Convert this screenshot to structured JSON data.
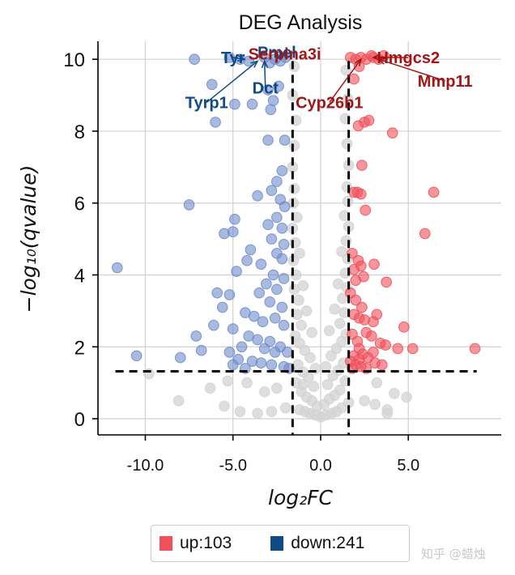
{
  "chart_data": {
    "type": "scatter",
    "title": "DEG Analysis",
    "xlabel": "log₂FC",
    "ylabel": "−log₁₀(qvalue)",
    "xlim": [
      -12.7,
      10.3
    ],
    "ylim": [
      -0.45,
      10.5
    ],
    "xticks": [
      -10,
      -5,
      0,
      5
    ],
    "xtick_labels": [
      "-10.0",
      "-5.0",
      "0.0",
      "5.0"
    ],
    "yticks": [
      0,
      2,
      4,
      6,
      8,
      10
    ],
    "ytick_labels": [
      "0",
      "2",
      "4",
      "6",
      "8",
      "10"
    ],
    "grid": true,
    "fc_threshold": 1.6,
    "q_threshold_line": 1.32,
    "thresholds": {
      "log2fc": [
        -1.6,
        1.6
      ],
      "neg_log10_q": 1.32
    },
    "colors": {
      "up": "#f0505a",
      "down": "#6f8ccb",
      "ns": "#d3d3d3",
      "up_label": "#a31616",
      "down_label": "#0e4a86",
      "legend_up": "#f0505a",
      "legend_down": "#0e4a86"
    },
    "series": [
      {
        "name": "up",
        "points": [
          [
            1.7,
            10.05
          ],
          [
            2.0,
            10.0
          ],
          [
            2.3,
            10.05
          ],
          [
            2.6,
            10.0
          ],
          [
            3.0,
            10.05
          ],
          [
            3.3,
            10.0
          ],
          [
            3.6,
            10.1
          ],
          [
            2.9,
            10.1
          ],
          [
            2.2,
            9.8
          ],
          [
            1.9,
            9.45
          ],
          [
            2.5,
            8.25
          ],
          [
            2.75,
            8.3
          ],
          [
            2.15,
            8.15
          ],
          [
            4.1,
            7.95
          ],
          [
            2.35,
            7.05
          ],
          [
            1.9,
            6.3
          ],
          [
            2.1,
            6.3
          ],
          [
            2.3,
            6.25
          ],
          [
            2.55,
            5.8
          ],
          [
            6.45,
            6.3
          ],
          [
            5.95,
            5.15
          ],
          [
            1.8,
            4.6
          ],
          [
            2.15,
            4.4
          ],
          [
            2.3,
            4.25
          ],
          [
            3.05,
            4.3
          ],
          [
            1.9,
            4.15
          ],
          [
            2.45,
            3.95
          ],
          [
            2.0,
            3.85
          ],
          [
            3.75,
            3.8
          ],
          [
            1.7,
            3.5
          ],
          [
            2.0,
            3.3
          ],
          [
            2.35,
            3.1
          ],
          [
            1.9,
            2.9
          ],
          [
            2.2,
            2.8
          ],
          [
            2.5,
            2.75
          ],
          [
            3.2,
            2.9
          ],
          [
            3.0,
            2.7
          ],
          [
            4.75,
            2.55
          ],
          [
            2.6,
            2.4
          ],
          [
            1.8,
            2.35
          ],
          [
            2.1,
            2.15
          ],
          [
            2.9,
            2.3
          ],
          [
            3.4,
            2.1
          ],
          [
            2.2,
            1.95
          ],
          [
            3.7,
            2.05
          ],
          [
            4.4,
            1.95
          ],
          [
            5.25,
            1.95
          ],
          [
            8.8,
            1.95
          ],
          [
            2.4,
            1.8
          ],
          [
            2.7,
            1.7
          ],
          [
            3.0,
            1.85
          ],
          [
            1.9,
            1.75
          ],
          [
            1.7,
            1.6
          ],
          [
            2.0,
            1.5
          ],
          [
            2.3,
            1.45
          ],
          [
            2.6,
            1.4
          ],
          [
            3.1,
            1.55
          ],
          [
            3.5,
            1.5
          ],
          [
            1.8,
            1.4
          ],
          [
            2.2,
            1.65
          ]
        ]
      },
      {
        "name": "down",
        "points": [
          [
            -7.2,
            10.0
          ],
          [
            -6.2,
            9.3
          ],
          [
            -5.2,
            10.05
          ],
          [
            -4.6,
            10.0
          ],
          [
            -4.1,
            9.95
          ],
          [
            -3.2,
            10.05
          ],
          [
            -2.9,
            9.9
          ],
          [
            -2.6,
            10.0
          ],
          [
            -2.3,
            9.95
          ],
          [
            -2.0,
            10.05
          ],
          [
            -3.9,
            8.75
          ],
          [
            -3.0,
            9.15
          ],
          [
            -2.7,
            8.85
          ],
          [
            -2.4,
            9.25
          ],
          [
            -2.85,
            8.6
          ],
          [
            -4.9,
            8.75
          ],
          [
            -6.0,
            8.25
          ],
          [
            -3.0,
            7.75
          ],
          [
            -2.05,
            7.75
          ],
          [
            -2.2,
            6.9
          ],
          [
            -2.5,
            6.6
          ],
          [
            -2.8,
            6.35
          ],
          [
            -2.3,
            6.1
          ],
          [
            -2.05,
            5.9
          ],
          [
            -3.6,
            6.2
          ],
          [
            -7.5,
            5.95
          ],
          [
            -4.9,
            5.55
          ],
          [
            -5.0,
            5.2
          ],
          [
            -5.5,
            5.15
          ],
          [
            -2.5,
            5.6
          ],
          [
            -3.0,
            5.4
          ],
          [
            -2.2,
            5.3
          ],
          [
            -2.8,
            5.0
          ],
          [
            -2.1,
            4.85
          ],
          [
            -4.0,
            4.7
          ],
          [
            -2.5,
            4.6
          ],
          [
            -4.2,
            4.4
          ],
          [
            -3.4,
            4.3
          ],
          [
            -2.2,
            4.45
          ],
          [
            -2.7,
            4.0
          ],
          [
            -2.1,
            3.9
          ],
          [
            -4.8,
            4.1
          ],
          [
            -3.1,
            3.75
          ],
          [
            -2.5,
            3.6
          ],
          [
            -3.5,
            3.5
          ],
          [
            -5.9,
            3.5
          ],
          [
            -5.2,
            3.45
          ],
          [
            -2.9,
            3.25
          ],
          [
            -2.2,
            3.1
          ],
          [
            -5.6,
            3.1
          ],
          [
            -4.3,
            2.95
          ],
          [
            -3.8,
            2.85
          ],
          [
            -2.6,
            2.8
          ],
          [
            -3.3,
            2.7
          ],
          [
            -2.1,
            2.6
          ],
          [
            -5.0,
            2.5
          ],
          [
            -6.1,
            2.6
          ],
          [
            -7.1,
            2.3
          ],
          [
            -4.1,
            2.3
          ],
          [
            -3.6,
            2.2
          ],
          [
            -2.9,
            2.15
          ],
          [
            -2.3,
            2.0
          ],
          [
            -4.5,
            2.0
          ],
          [
            -3.2,
            1.95
          ],
          [
            -2.6,
            1.85
          ],
          [
            -5.2,
            1.85
          ],
          [
            -6.8,
            1.9
          ],
          [
            -8.0,
            1.7
          ],
          [
            -10.5,
            1.75
          ],
          [
            -11.6,
            4.2
          ],
          [
            -4.7,
            1.65
          ],
          [
            -3.9,
            1.6
          ],
          [
            -3.4,
            1.55
          ],
          [
            -2.8,
            1.5
          ],
          [
            -2.1,
            1.45
          ],
          [
            -5.0,
            1.5
          ],
          [
            -4.3,
            1.4
          ],
          [
            -1.9,
            1.85
          ],
          [
            -1.8,
            1.4
          ]
        ]
      },
      {
        "name": "ns",
        "points": [
          [
            0.0,
            0.05
          ],
          [
            -0.3,
            0.1
          ],
          [
            0.3,
            0.1
          ],
          [
            -0.6,
            0.15
          ],
          [
            0.6,
            0.15
          ],
          [
            -0.9,
            0.2
          ],
          [
            0.9,
            0.2
          ],
          [
            -1.2,
            0.25
          ],
          [
            1.2,
            0.3
          ],
          [
            -0.2,
            0.35
          ],
          [
            0.2,
            0.4
          ],
          [
            -0.5,
            0.5
          ],
          [
            0.5,
            0.55
          ],
          [
            -0.8,
            0.6
          ],
          [
            0.8,
            0.65
          ],
          [
            -1.1,
            0.75
          ],
          [
            1.1,
            0.8
          ],
          [
            -0.4,
            0.9
          ],
          [
            0.4,
            0.95
          ],
          [
            -1.4,
            1.0
          ],
          [
            1.4,
            1.05
          ],
          [
            -0.7,
            1.15
          ],
          [
            0.7,
            1.2
          ],
          [
            -1.0,
            1.3
          ],
          [
            1.0,
            1.35
          ],
          [
            -0.3,
            1.4
          ],
          [
            0.3,
            1.45
          ],
          [
            -1.3,
            1.5
          ],
          [
            1.3,
            1.55
          ],
          [
            -0.6,
            1.7
          ],
          [
            0.6,
            1.75
          ],
          [
            -0.9,
            1.9
          ],
          [
            0.9,
            1.95
          ],
          [
            -1.2,
            2.1
          ],
          [
            1.2,
            2.15
          ],
          [
            -1.45,
            2.3
          ],
          [
            1.45,
            2.35
          ],
          [
            -0.5,
            2.4
          ],
          [
            0.5,
            2.45
          ],
          [
            -1.1,
            2.6
          ],
          [
            1.1,
            2.65
          ],
          [
            -1.35,
            2.9
          ],
          [
            1.35,
            2.95
          ],
          [
            -0.8,
            3.0
          ],
          [
            0.8,
            3.05
          ],
          [
            -1.25,
            3.3
          ],
          [
            1.25,
            3.35
          ],
          [
            -1.5,
            3.6
          ],
          [
            1.5,
            3.65
          ],
          [
            -1.0,
            3.7
          ],
          [
            1.0,
            3.75
          ],
          [
            -1.4,
            4.0
          ],
          [
            1.4,
            4.05
          ],
          [
            -1.55,
            4.4
          ],
          [
            1.55,
            4.45
          ],
          [
            -1.2,
            4.6
          ],
          [
            1.2,
            4.65
          ],
          [
            -1.45,
            4.9
          ],
          [
            1.45,
            4.95
          ],
          [
            -1.6,
            5.3
          ],
          [
            1.6,
            5.35
          ],
          [
            -1.35,
            5.6
          ],
          [
            1.35,
            5.65
          ],
          [
            -1.55,
            6.0
          ],
          [
            1.55,
            6.05
          ],
          [
            -1.5,
            6.4
          ],
          [
            1.5,
            6.45
          ],
          [
            -1.6,
            7.0
          ],
          [
            1.6,
            7.05
          ],
          [
            -1.5,
            7.6
          ],
          [
            1.5,
            7.65
          ],
          [
            -1.4,
            8.3
          ],
          [
            1.4,
            8.35
          ],
          [
            -1.6,
            9.0
          ],
          [
            1.55,
            8.9
          ],
          [
            -1.5,
            9.8
          ],
          [
            1.45,
            9.7
          ],
          [
            -1.0,
            0.95
          ],
          [
            1.6,
            0.45
          ],
          [
            2.5,
            0.5
          ],
          [
            3.1,
            0.4
          ],
          [
            3.8,
            0.25
          ],
          [
            3.2,
            1.0
          ],
          [
            4.2,
            0.7
          ],
          [
            4.9,
            0.6
          ],
          [
            3.8,
            0.15
          ],
          [
            -2.0,
            0.3
          ],
          [
            -2.8,
            0.2
          ],
          [
            -3.6,
            0.15
          ],
          [
            -4.6,
            0.2
          ],
          [
            -5.5,
            0.35
          ],
          [
            -6.3,
            0.85
          ],
          [
            -8.1,
            0.5
          ],
          [
            -9.8,
            1.25
          ],
          [
            -2.5,
            0.85
          ],
          [
            -3.2,
            0.75
          ],
          [
            -4.2,
            1.0
          ],
          [
            -5.3,
            1.05
          ]
        ]
      }
    ],
    "annotations": [
      {
        "text": "Tyr",
        "class": "down",
        "label_x": -5.0,
        "label_y": 10.05,
        "point_x": -4.35,
        "point_y": 10.0
      },
      {
        "text": "Dct",
        "class": "down",
        "label_x": -3.15,
        "label_y": 9.2,
        "point_x": -3.2,
        "point_y": 9.95
      },
      {
        "text": "Tyrp1",
        "class": "down",
        "label_x": -6.5,
        "label_y": 8.8,
        "point_x": -3.6,
        "point_y": 9.95
      },
      {
        "text": "Pmel",
        "class": "down",
        "label_x": -2.5,
        "label_y": 10.2,
        "point_x": -2.3,
        "point_y": 10.0
      },
      {
        "text": "Serpina3i",
        "class": "up",
        "label_x": -2.05,
        "label_y": 10.15,
        "point_x": -2.0,
        "point_y": 10.05
      },
      {
        "text": "Cyp26b1",
        "class": "up",
        "label_x": 0.5,
        "label_y": 8.8,
        "point_x": 2.3,
        "point_y": 10.0
      },
      {
        "text": "Hmgcs2",
        "class": "up",
        "label_x": 5.0,
        "label_y": 10.05,
        "point_x": 3.0,
        "point_y": 10.05
      },
      {
        "text": "Mmp11",
        "class": "up",
        "label_x": 7.1,
        "label_y": 9.4,
        "point_x": 3.3,
        "point_y": 10.0
      }
    ]
  },
  "legend": {
    "up_label": "up:103",
    "down_label": "down:241"
  },
  "watermark": "知乎 @蜡烛"
}
